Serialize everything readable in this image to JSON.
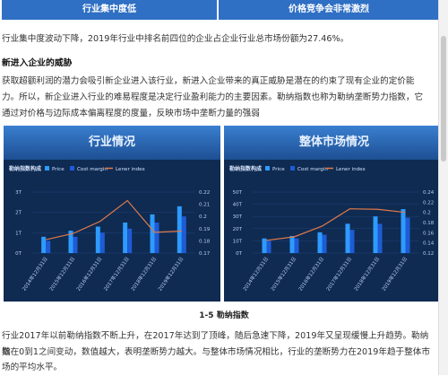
{
  "header": {
    "left": "行业集中度低",
    "right": "价格竞争会非常激烈"
  },
  "intro": "行业集中度波动下降，2019年行业中排名前四位的企业占企业行业总市场份额为27.46%。",
  "section_title": "新进入企业的威胁",
  "para1": {
    "line1": "获取超额利润的潜力会吸引新企业进入该行业，新进入企业带来的真正威胁是潜在的约束了现有企业的定价能",
    "line2": "力。所以，新企业进入行业的难易程度是决定行业盈利能力的主要因素。勒纳指数也称为勒纳垄断势力指数，它",
    "line3": "通过对价格与边际成本偏离程度的度量，反映市场中垄断力量的强弱"
  },
  "figure_caption": "1-5 勒纳指数",
  "para2": {
    "line1": "行业2017年以前勒纳指数不断上升，在2017年达到了顶峰，随后急速下降，2019年又呈现缓慢上升趋势。勒纳指",
    "line2": "数在0到1之间变动，数值越大，表明垄断势力越大。与整体市场情况相比，行业的垄断势力在2019年趋于整体市",
    "line3": "场的平均水平。"
  },
  "colors": {
    "header_bg": "#2f6fc4",
    "panel_bg": "#0f2b52",
    "price": "#2e9bff",
    "cost": "#1f5bd6",
    "lerner": "#e07a4a"
  },
  "chart_data": [
    {
      "type": "bar",
      "title": "行业情况",
      "subtitle": "勒纳指数构成",
      "legend": [
        "Price",
        "Cost margin",
        "Lener index"
      ],
      "categories": [
        "2014年12月31日",
        "2015年12月31日",
        "2016年12月31日",
        "2017年12月31日",
        "2018年12月31日",
        "2019年12月31日"
      ],
      "y_ticks_left": [
        "0T",
        "1T",
        "2T",
        "3T"
      ],
      "y_ticks_right": [
        "0.17",
        "0.18",
        "0.19",
        "0.2",
        "0.21",
        "0.22"
      ],
      "ylim_left": [
        0,
        3
      ],
      "ylim_right": [
        0.17,
        0.22
      ],
      "series": [
        {
          "name": "Price",
          "values": [
            0.8,
            1.1,
            1.3,
            1.5,
            1.9,
            2.3
          ]
        },
        {
          "name": "Cost margin",
          "values": [
            0.6,
            0.8,
            1.0,
            1.2,
            1.5,
            1.8
          ]
        },
        {
          "name": "Lener index",
          "values": [
            0.181,
            0.186,
            0.196,
            0.213,
            0.187,
            0.188
          ]
        }
      ]
    },
    {
      "type": "bar",
      "title": "整体市场情况",
      "subtitle": "勒纳指数构成",
      "legend": [
        "Price",
        "Cost margin",
        "Lener index"
      ],
      "categories": [
        "2014年12月31日",
        "2015年12月31日",
        "2016年12月31日",
        "2017年12月31日",
        "2018年12月31日",
        "2019年12月31日"
      ],
      "y_ticks_left": [
        "0T",
        "10T",
        "20T",
        "30T",
        "40T",
        "50T"
      ],
      "y_ticks_right": [
        "0.12",
        "0.14",
        "0.16",
        "0.18",
        "0.2",
        "0.22",
        "0.24"
      ],
      "ylim_left": [
        0,
        50
      ],
      "ylim_right": [
        0.12,
        0.24
      ],
      "series": [
        {
          "name": "Price",
          "values": [
            12,
            14,
            17,
            24,
            30,
            36
          ]
        },
        {
          "name": "Cost margin",
          "values": [
            10,
            12,
            15,
            19,
            24,
            29
          ]
        },
        {
          "name": "Lener index",
          "values": [
            0.145,
            0.152,
            0.173,
            0.207,
            0.206,
            0.2
          ]
        }
      ]
    }
  ]
}
